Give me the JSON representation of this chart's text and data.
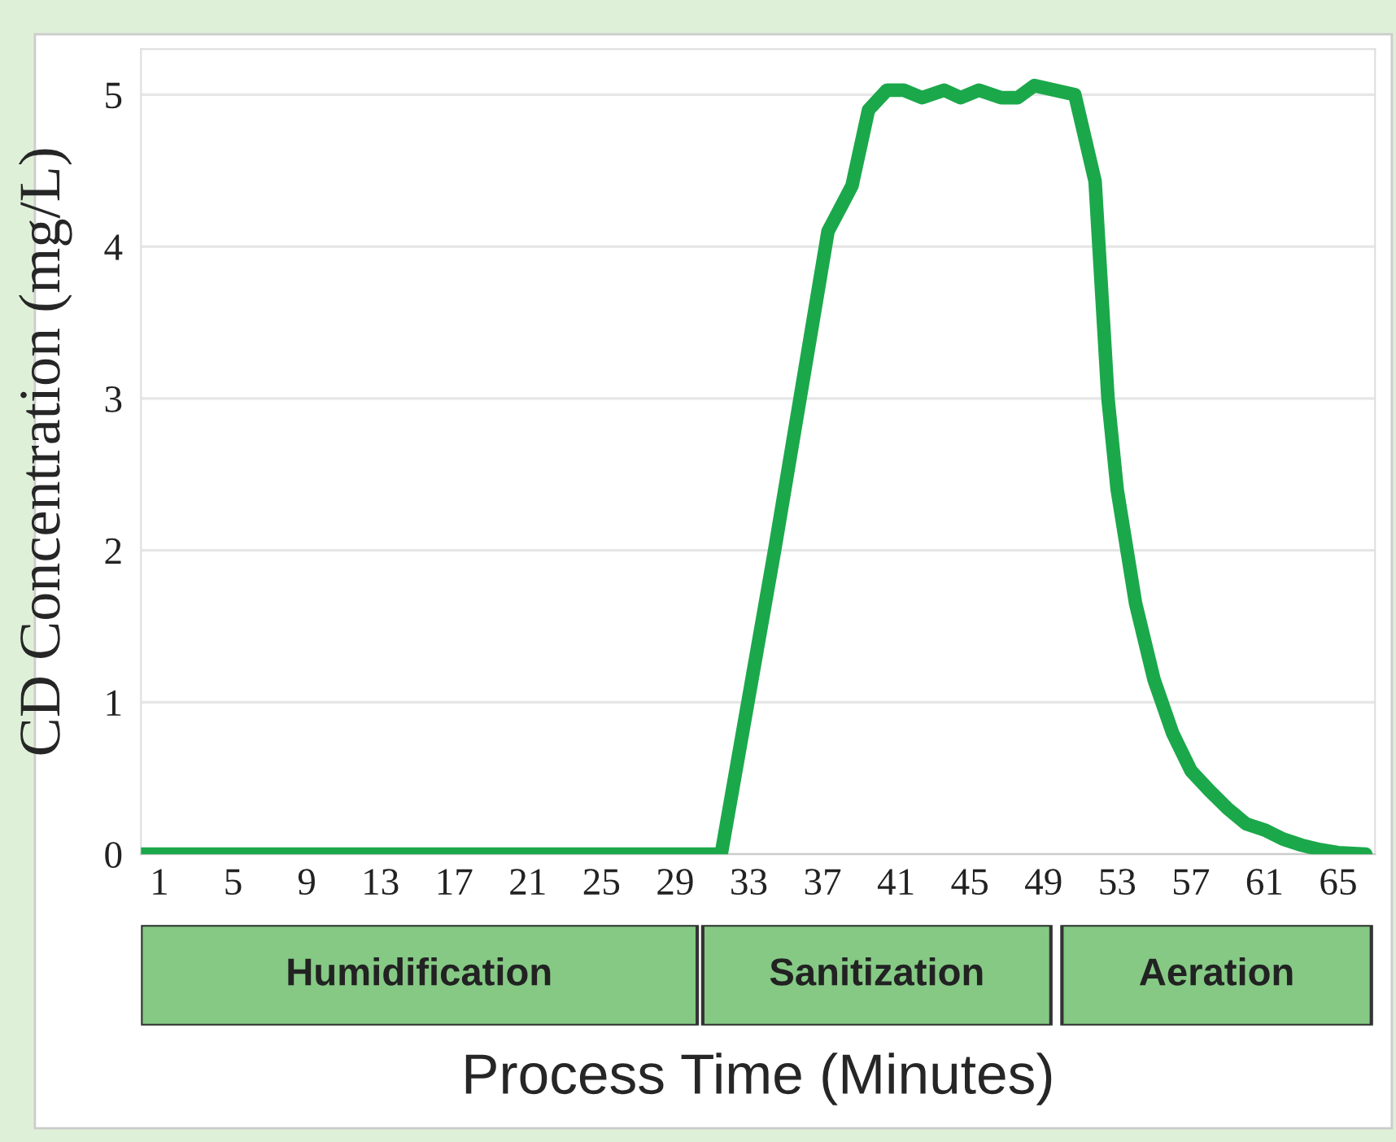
{
  "chart_data": [
    {
      "type": "line",
      "ylabel": "CD Concentration (mg/L)",
      "xlim": [
        0,
        67
      ],
      "xticks": [
        1,
        5,
        9,
        13,
        17,
        21,
        25,
        29,
        33,
        37,
        41,
        45,
        49,
        53,
        57,
        61,
        65
      ],
      "ylim": [
        0,
        5.3
      ],
      "yticks": [
        0,
        1,
        2,
        3,
        4,
        5
      ],
      "grid": "y",
      "legend": false,
      "marker": "none",
      "line_style": "solid",
      "series": [
        {
          "color": "#1ba84b",
          "x": [
            0,
            31.5,
            34.4,
            37.3,
            38.6,
            39.5,
            40.5,
            41.4,
            42.4,
            43.6,
            44.5,
            45.5,
            46.7,
            47.6,
            48.5,
            50.7,
            51.8,
            52.5,
            53,
            54,
            55,
            56,
            57,
            58,
            59,
            60,
            61,
            62,
            63,
            64,
            65,
            66.5
          ],
          "values": [
            0,
            0,
            2.0,
            4.1,
            4.4,
            4.9,
            5.03,
            5.03,
            4.98,
            5.03,
            4.98,
            5.03,
            4.98,
            4.98,
            5.06,
            5.0,
            4.43,
            3.0,
            2.4,
            1.65,
            1.15,
            0.8,
            0.55,
            0.42,
            0.3,
            0.2,
            0.16,
            0.1,
            0.06,
            0.03,
            0.01,
            0
          ]
        }
      ]
    },
    {
      "type": "bar",
      "orientation": "horizontal",
      "xlabel": "Process Time (Minutes)",
      "categories": [
        null
      ],
      "xlim": [
        0,
        67
      ],
      "tick_labels": false,
      "series": [
        {
          "color": "#85c985",
          "base": [
            0
          ],
          "values": [
            30.2
          ],
          "value_labels": [
            "Humidification"
          ]
        },
        {
          "color": "#85c985",
          "base": [
            30.5
          ],
          "values": [
            18.9
          ],
          "value_labels": [
            "Sanitization"
          ]
        },
        {
          "color": "#85c985",
          "base": [
            50.0
          ],
          "values": [
            16.8
          ],
          "value_labels": [
            "Aeration"
          ]
        }
      ]
    }
  ]
}
